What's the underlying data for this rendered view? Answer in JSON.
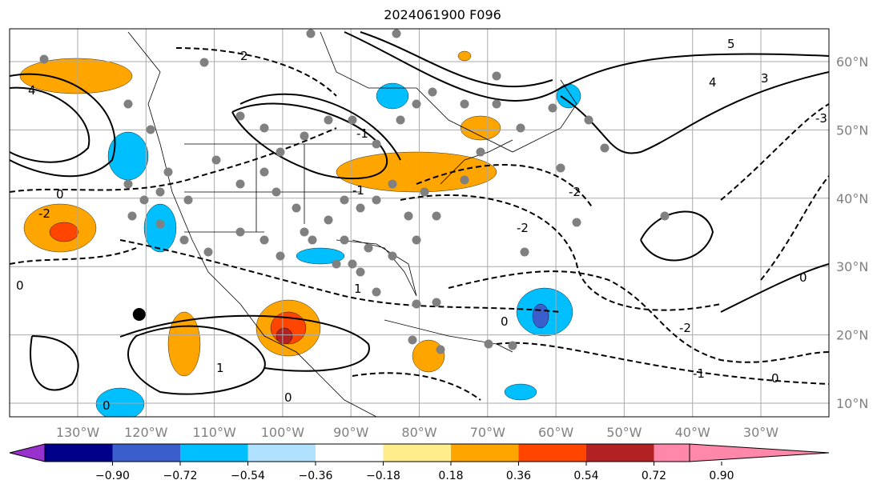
{
  "title": "2024061900 F096",
  "map": {
    "lon_labels": [
      "130°W",
      "120°W",
      "110°W",
      "100°W",
      "90°W",
      "80°W",
      "70°W",
      "60°W",
      "50°W",
      "40°W",
      "30°W"
    ],
    "lat_labels": [
      "60°N",
      "50°N",
      "40°N",
      "30°N",
      "20°N",
      "10°N"
    ],
    "contour_labels": [
      "2",
      "-2",
      "0",
      "-1",
      "1",
      "4",
      "3",
      "5",
      "-3"
    ],
    "marker": {
      "lon": -121,
      "lat": 23,
      "color": "#000000"
    }
  },
  "colorbar": {
    "ticks": [
      "−0.90",
      "−0.72",
      "−0.54",
      "−0.36",
      "−0.18",
      "0.18",
      "0.36",
      "0.54",
      "0.72",
      "0.90"
    ],
    "colors": [
      "#9932CC",
      "#00008B",
      "#3A5FCD",
      "#00BFFF",
      "#B0E2FF",
      "#FFFFFF",
      "#FFEC8B",
      "#FFA500",
      "#FF4500",
      "#B22222",
      "#FF88AA"
    ]
  }
}
